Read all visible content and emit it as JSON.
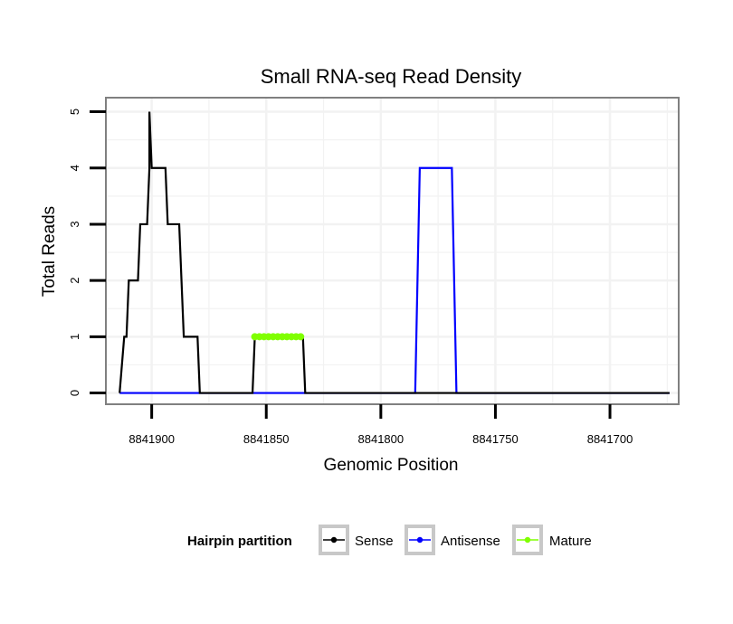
{
  "chart_data": {
    "type": "line",
    "title": "Small RNA-seq Read Density",
    "xlabel": "Genomic Position",
    "ylabel": "Total Reads",
    "xlim": [
      8841920,
      8841670
    ],
    "ylim": [
      -0.2,
      5.25
    ],
    "x_reversed": true,
    "x_ticks": [
      8841900,
      8841850,
      8841800,
      8841750,
      8841700
    ],
    "x_tick_labels": [
      "8841900",
      "8841850",
      "8841800",
      "8841750",
      "8841700"
    ],
    "y_ticks": [
      0,
      1,
      2,
      3,
      4,
      5
    ],
    "y_tick_labels": [
      "0",
      "1",
      "2",
      "3",
      "4",
      "5"
    ],
    "grid": true,
    "legend": {
      "title": "Hairpin partition",
      "position": "bottom",
      "entries": [
        "Sense",
        "Antisense",
        "Mature"
      ]
    },
    "series": [
      {
        "name": "Sense",
        "color": "#000000",
        "points": [
          [
            8841914,
            0
          ],
          [
            8841912,
            1
          ],
          [
            8841911,
            1
          ],
          [
            8841910,
            2
          ],
          [
            8841906,
            2
          ],
          [
            8841905,
            3
          ],
          [
            8841902,
            3
          ],
          [
            8841901,
            4
          ],
          [
            8841901,
            5
          ],
          [
            8841900,
            4
          ],
          [
            8841897,
            4
          ],
          [
            8841894,
            4
          ],
          [
            8841893,
            3
          ],
          [
            8841888,
            3
          ],
          [
            8841887,
            2
          ],
          [
            8841886,
            1
          ],
          [
            8841880,
            1
          ],
          [
            8841879,
            0
          ],
          [
            8841872,
            0
          ],
          [
            8841856,
            0
          ],
          [
            8841855,
            1
          ],
          [
            8841850,
            1
          ],
          [
            8841834,
            1
          ],
          [
            8841833,
            0
          ],
          [
            8841674,
            0
          ]
        ]
      },
      {
        "name": "Antisense",
        "color": "#0000ff",
        "points": [
          [
            8841914,
            0
          ],
          [
            8841785,
            0
          ],
          [
            8841783,
            4
          ],
          [
            8841769,
            4
          ],
          [
            8841767,
            0
          ],
          [
            8841674,
            0
          ]
        ]
      },
      {
        "name": "Mature",
        "color": "#7fff00",
        "points": [
          [
            8841855,
            1
          ],
          [
            8841853,
            1
          ],
          [
            8841851,
            1
          ],
          [
            8841849,
            1
          ],
          [
            8841847,
            1
          ],
          [
            8841845,
            1
          ],
          [
            8841843,
            1
          ],
          [
            8841841,
            1
          ],
          [
            8841839,
            1
          ],
          [
            8841837,
            1
          ],
          [
            8841835,
            1
          ]
        ]
      }
    ]
  }
}
